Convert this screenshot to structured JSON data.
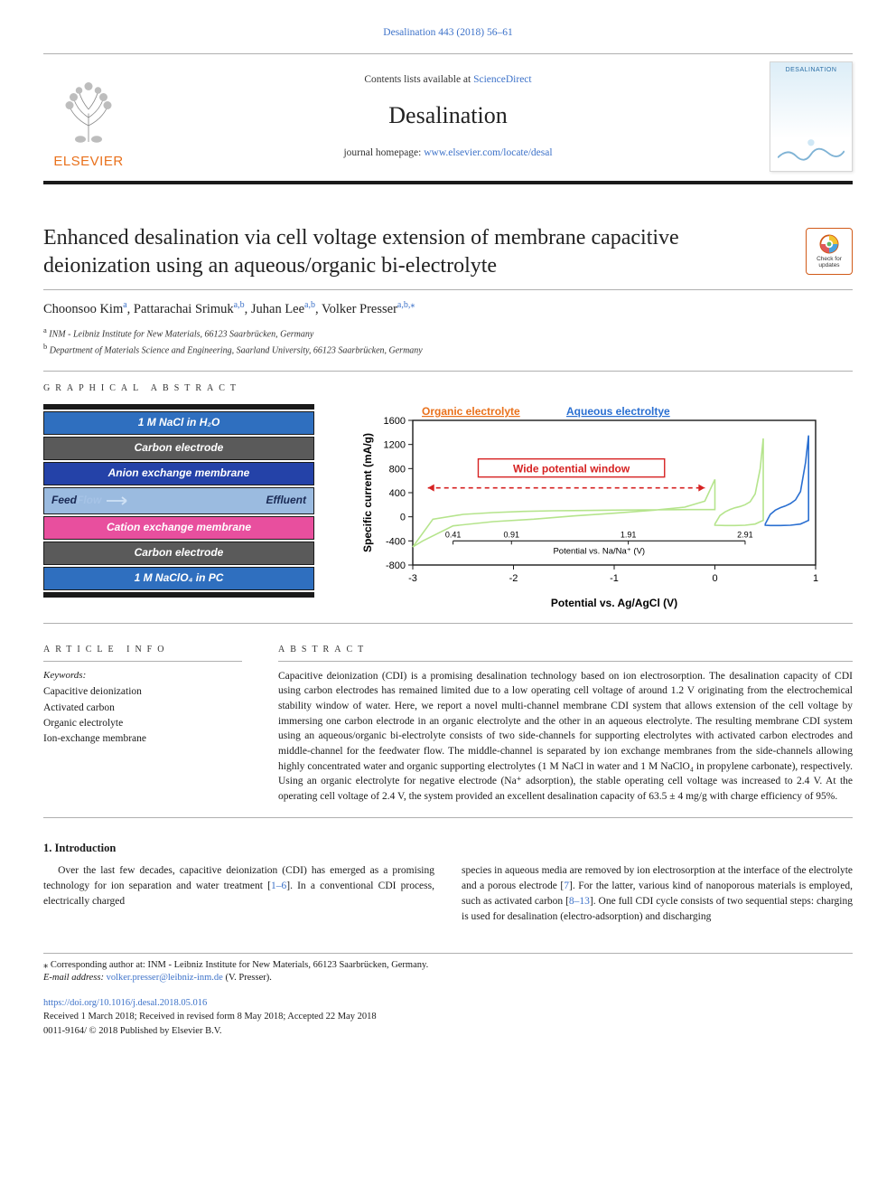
{
  "citation": "Desalination 443 (2018) 56–61",
  "header": {
    "contents_prefix": "Contents lists available at ",
    "contents_link_text": "ScienceDirect",
    "journal_name": "Desalination",
    "homepage_prefix": "journal homepage: ",
    "homepage_link_text": "www.elsevier.com/locate/desal",
    "elsevier_wordmark": "ELSEVIER",
    "cover_title": "DESALINATION"
  },
  "title": "Enhanced desalination via cell voltage extension of membrane capacitive deionization using an aqueous/organic bi-electrolyte",
  "check_updates": {
    "line1": "Check for",
    "line2": "updates"
  },
  "authors": [
    {
      "name": "Choonsoo Kim",
      "aff": "a"
    },
    {
      "name": "Pattarachai Srimuk",
      "aff": "a,b"
    },
    {
      "name": "Juhan Lee",
      "aff": "a,b"
    },
    {
      "name": "Volker Presser",
      "aff": "a,b,",
      "corr": true
    }
  ],
  "affiliations": [
    {
      "marker": "a",
      "text": "INM - Leibniz Institute for New Materials, 66123 Saarbrücken, Germany"
    },
    {
      "marker": "b",
      "text": "Department of Materials Science and Engineering, Saarland University, 66123 Saarbrücken, Germany"
    }
  ],
  "graphical_abstract": {
    "heading": "GRAPHICAL ABSTRACT",
    "stack": {
      "top_electrolyte": {
        "text": "1 M NaCl in H₂O",
        "bg": "#2f6fbf",
        "fg": "#ffffff"
      },
      "carbon_top": {
        "text": "Carbon electrode",
        "bg": "#5a5a5a",
        "fg": "#ffffff"
      },
      "aem": {
        "text": "Anion exchange membrane",
        "bg": "#2442a8",
        "fg": "#ffffff"
      },
      "feed": {
        "left": "Feed",
        "mid": "Flow",
        "right": "Effluent",
        "bg": "#9bbbe0",
        "fg": "#1a2a55"
      },
      "cem": {
        "text": "Cation exchange membrane",
        "bg": "#e84f9e",
        "fg": "#ffffff"
      },
      "carbon_bottom": {
        "text": "Carbon electrode",
        "bg": "#5a5a5a",
        "fg": "#ffffff"
      },
      "bottom_electrolyte": {
        "text": "1 M NaClO₄ in PC",
        "bg": "#2f6fbf",
        "fg": "#ffffff"
      }
    },
    "chart": {
      "type": "line",
      "legend": [
        {
          "label": "Organic electrolyte",
          "color": "#e9711c"
        },
        {
          "label": "Aqueous electroltye",
          "color": "#2a6fd1"
        }
      ],
      "y_label": "Specific current (mA/g)",
      "x_label_top": "Potential vs. Na/Na⁺ (V)",
      "x_label_bottom": "Potential vs. Ag/AgCl (V)",
      "y_ticks": [
        -800,
        -400,
        0,
        400,
        800,
        1200,
        1600
      ],
      "x_ticks_bottom": [
        -3,
        -2,
        -1,
        0,
        1
      ],
      "x_ticks_top": [
        0.41,
        0.91,
        1.91,
        2.91
      ],
      "y_range": [
        -800,
        1600
      ],
      "x_range_bottom": [
        -3,
        1
      ],
      "x_range_top": [
        0.41,
        2.91
      ],
      "annotation": {
        "text": "Wide potential window",
        "color": "#d62222",
        "box_border": "#d62222"
      },
      "axis_color": "#1a1a1a",
      "tick_fontsize": 11,
      "label_fontsize": 12,
      "series": {
        "organic_neg": {
          "color": "#b5e48c",
          "path": [
            [
              -3.0,
              -500
            ],
            [
              -2.8,
              -40
            ],
            [
              -2.5,
              40
            ],
            [
              -2.2,
              70
            ],
            [
              -1.9,
              90
            ],
            [
              -1.6,
              100
            ],
            [
              -1.3,
              105
            ],
            [
              -1.0,
              110
            ],
            [
              -0.7,
              115
            ],
            [
              -0.4,
              118
            ],
            [
              -0.2,
              120
            ],
            [
              0.0,
              120
            ],
            [
              0.0,
              620
            ],
            [
              -0.1,
              260
            ],
            [
              -0.3,
              160
            ],
            [
              -0.6,
              110
            ],
            [
              -1.0,
              60
            ],
            [
              -1.4,
              15
            ],
            [
              -1.8,
              -40
            ],
            [
              -2.2,
              -80
            ],
            [
              -2.6,
              -150
            ],
            [
              -2.9,
              -400
            ],
            [
              -3.0,
              -500
            ]
          ]
        },
        "organic_pos": {
          "color": "#b5e48c",
          "path": [
            [
              0.0,
              -120
            ],
            [
              0.05,
              20
            ],
            [
              0.1,
              80
            ],
            [
              0.15,
              120
            ],
            [
              0.2,
              150
            ],
            [
              0.25,
              170
            ],
            [
              0.3,
              200
            ],
            [
              0.35,
              250
            ],
            [
              0.4,
              380
            ],
            [
              0.45,
              800
            ],
            [
              0.48,
              1300
            ],
            [
              0.48,
              -60
            ],
            [
              0.4,
              -120
            ],
            [
              0.3,
              -140
            ],
            [
              0.2,
              -145
            ],
            [
              0.1,
              -145
            ],
            [
              0.0,
              -140
            ],
            [
              0.0,
              -120
            ]
          ]
        },
        "aqueous": {
          "color": "#2a6fd1",
          "path": [
            [
              0.5,
              -120
            ],
            [
              0.55,
              40
            ],
            [
              0.6,
              110
            ],
            [
              0.65,
              150
            ],
            [
              0.7,
              180
            ],
            [
              0.75,
              220
            ],
            [
              0.8,
              280
            ],
            [
              0.85,
              420
            ],
            [
              0.9,
              900
            ],
            [
              0.93,
              1350
            ],
            [
              0.93,
              -60
            ],
            [
              0.85,
              -120
            ],
            [
              0.75,
              -140
            ],
            [
              0.65,
              -145
            ],
            [
              0.55,
              -145
            ],
            [
              0.5,
              -140
            ],
            [
              0.5,
              -120
            ]
          ]
        }
      }
    }
  },
  "article_info": {
    "heading": "ARTICLE INFO",
    "keywords_label": "Keywords:",
    "keywords": [
      "Capacitive deionization",
      "Activated carbon",
      "Organic electrolyte",
      "Ion-exchange membrane"
    ]
  },
  "abstract": {
    "heading": "ABSTRACT",
    "text": "Capacitive deionization (CDI) is a promising desalination technology based on ion electrosorption. The desalination capacity of CDI using carbon electrodes has remained limited due to a low operating cell voltage of around 1.2 V originating from the electrochemical stability window of water. Here, we report a novel multi-channel membrane CDI system that allows extension of the cell voltage by immersing one carbon electrode in an organic electrolyte and the other in an aqueous electrolyte. The resulting membrane CDI system using an aqueous/organic bi-electrolyte consists of two side-channels for supporting electrolytes with activated carbon electrodes and middle-channel for the feedwater flow. The middle-channel is separated by ion exchange membranes from the side-channels allowing highly concentrated water and organic supporting electrolytes (1 M NaCl in water and 1 M NaClO₄ in propylene carbonate), respectively. Using an organic electrolyte for negative electrode (Na⁺ adsorption), the stable operating cell voltage was increased to 2.4 V. At the operating cell voltage of 2.4 V, the system provided an excellent desalination capacity of 63.5 ± 4 mg/g with charge efficiency of 95%."
  },
  "intro": {
    "heading": "1. Introduction",
    "col1": "Over the last few decades, capacitive deionization (CDI) has emerged as a promising technology for ion separation and water treatment [1–6]. In a conventional CDI process, electrically charged",
    "col2": "species in aqueous media are removed by ion electrosorption at the interface of the electrolyte and a porous electrode [7]. For the latter, various kind of nanoporous materials is employed, such as activated carbon [8–13]. One full CDI cycle consists of two sequential steps: charging is used for desalination (electro-adsorption) and discharging"
  },
  "footnote": {
    "corr_symbol": "⁎",
    "corr_text": "Corresponding author at: INM - Leibniz Institute for New Materials, 66123 Saarbrücken, Germany.",
    "email_label": "E-mail address: ",
    "email": "volker.presser@leibniz-inm.de",
    "email_suffix": " (V. Presser)."
  },
  "footer": {
    "doi": "https://doi.org/10.1016/j.desal.2018.05.016",
    "received": "Received 1 March 2018; Received in revised form 8 May 2018; Accepted 22 May 2018",
    "copyright": "0011-9164/ © 2018 Published by Elsevier B.V."
  },
  "colors": {
    "link": "#3d72c9",
    "accent_orange": "#e9711c",
    "rule": "#b0b0b0"
  }
}
